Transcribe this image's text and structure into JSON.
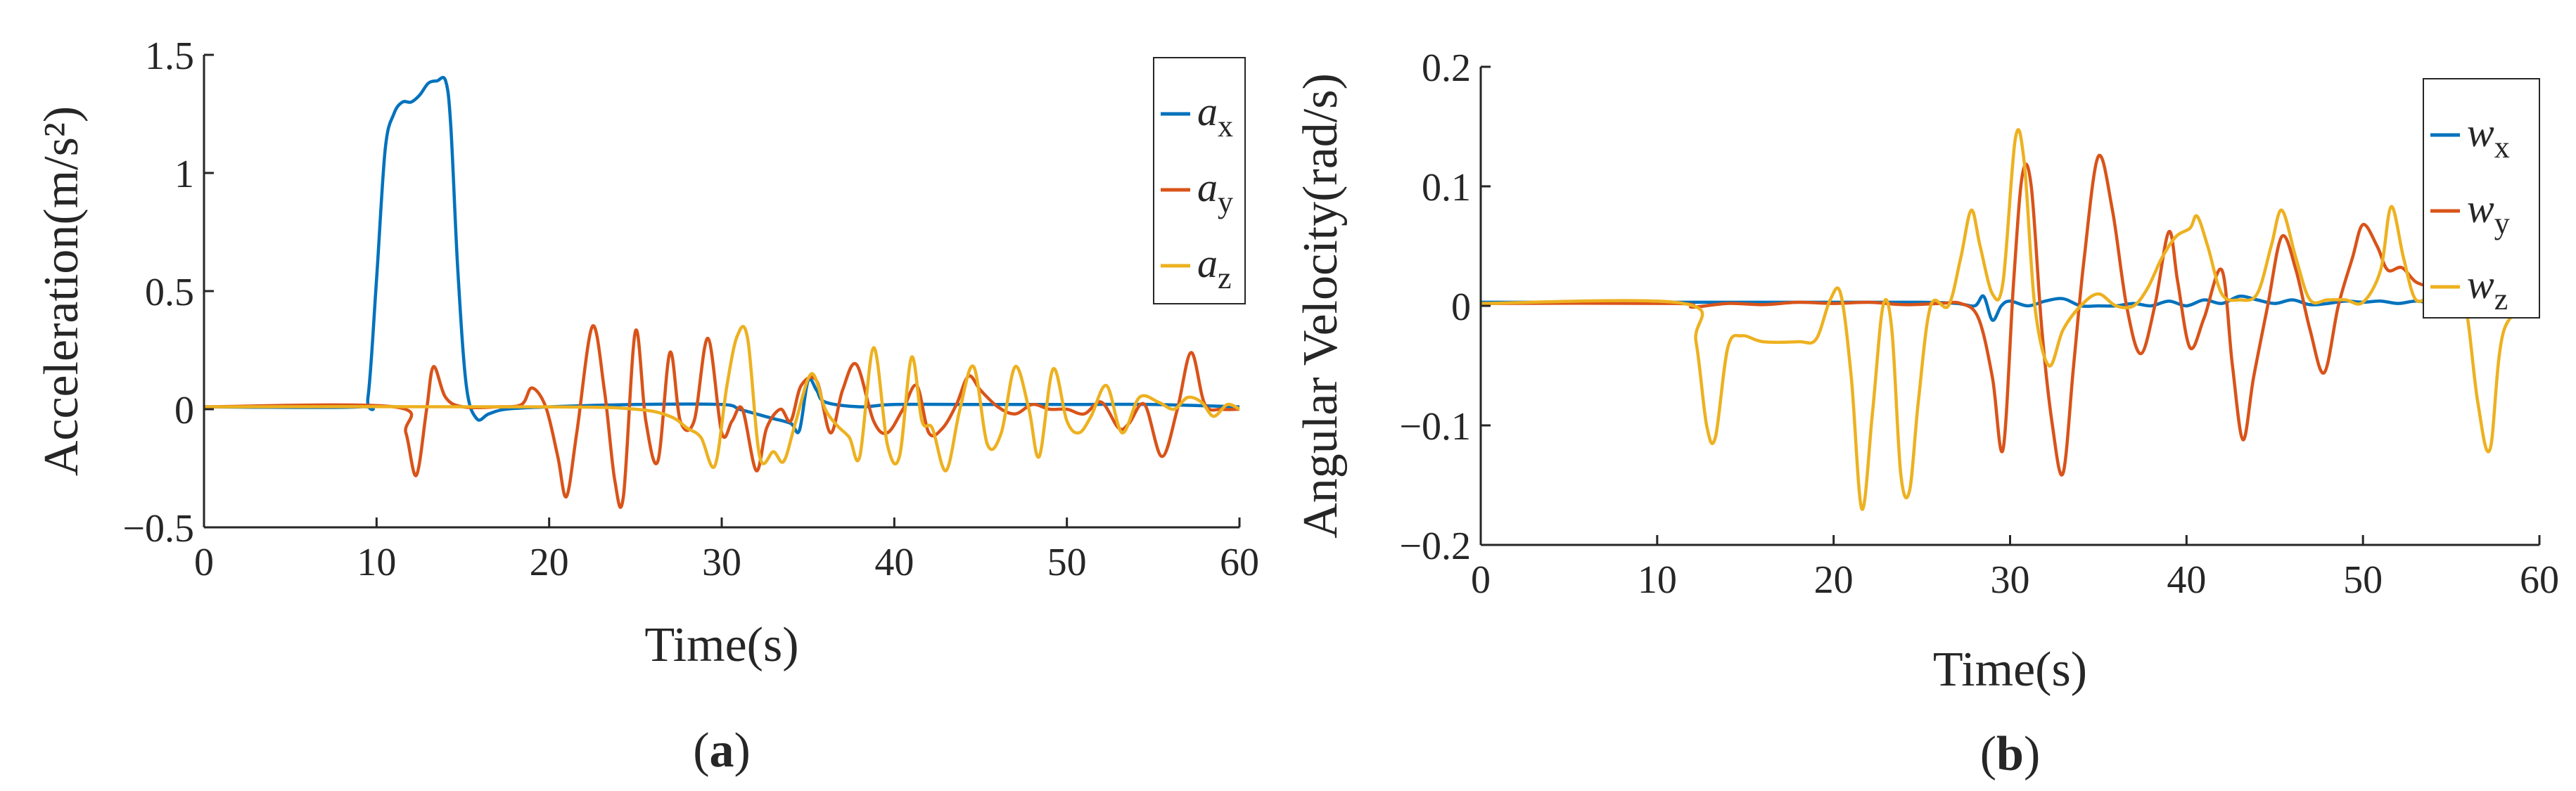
{
  "chart_data": [
    {
      "type": "line",
      "panel_label": "(a)",
      "xlabel": "Time(s)",
      "ylabel": "Acceleration(m/s²)",
      "xlim": [
        0,
        60
      ],
      "ylim": [
        -0.5,
        1.5
      ],
      "xticks": [
        0,
        10,
        20,
        30,
        40,
        50,
        60
      ],
      "yticks": [
        -0.5,
        0,
        0.5,
        1,
        1.5
      ],
      "ytick_labels": [
        "−0.5",
        "0",
        "0.5",
        "1",
        "1.5"
      ],
      "grid": false,
      "legend_position": "top-right",
      "series": [
        {
          "name": "a",
          "subscript": "x",
          "color": "#0072BD",
          "x": [
            0,
            9,
            9.5,
            10,
            10.5,
            11,
            11.5,
            12,
            12.5,
            13,
            13.5,
            14,
            14.3,
            14.7,
            15.2,
            15.8,
            16.5,
            17.5,
            20,
            25,
            30,
            31,
            32,
            33,
            34,
            34.5,
            35,
            35.5,
            36,
            38,
            40,
            45,
            50,
            55,
            60
          ],
          "y": [
            0.01,
            0.01,
            0.05,
            0.55,
            1.1,
            1.25,
            1.3,
            1.3,
            1.33,
            1.38,
            1.39,
            1.39,
            1.2,
            0.6,
            0.1,
            -0.04,
            -0.02,
            0.0,
            0.01,
            0.02,
            0.02,
            0.0,
            -0.02,
            -0.04,
            -0.06,
            -0.09,
            0.12,
            0.08,
            0.03,
            0.01,
            0.02,
            0.02,
            0.02,
            0.02,
            0.01
          ]
        },
        {
          "name": "a",
          "subscript": "y",
          "color": "#D95319",
          "x": [
            0,
            11,
            11.7,
            12.3,
            12.9,
            13.3,
            14,
            15,
            17,
            18.4,
            19,
            19.8,
            20.5,
            21,
            21.6,
            22.5,
            23.2,
            23.8,
            24.3,
            25,
            25.6,
            26.3,
            27,
            27.6,
            28.4,
            29.2,
            30,
            30.6,
            31.2,
            32,
            32.6,
            33.4,
            34,
            34.6,
            35.5,
            36.3,
            37,
            37.8,
            38.8,
            39.6,
            40.5,
            41.3,
            42,
            42.8,
            43.6,
            44.3,
            45,
            46,
            47,
            48,
            49,
            50,
            51,
            52,
            53,
            53.6,
            54.5,
            55.5,
            56.4,
            57.2,
            58,
            59,
            60
          ],
          "y": [
            0.01,
            0.01,
            -0.1,
            -0.28,
            0.0,
            0.18,
            0.05,
            0.01,
            0.01,
            0.02,
            0.09,
            0.01,
            -0.2,
            -0.37,
            -0.1,
            0.35,
            0.08,
            -0.3,
            -0.37,
            0.33,
            -0.05,
            -0.22,
            0.24,
            -0.05,
            -0.05,
            0.3,
            -0.1,
            -0.05,
            0.0,
            -0.26,
            -0.08,
            0.0,
            -0.05,
            0.1,
            0.12,
            -0.1,
            0.08,
            0.19,
            -0.05,
            -0.1,
            0.0,
            0.1,
            -0.1,
            -0.08,
            0.02,
            0.14,
            0.08,
            0.01,
            -0.02,
            0.02,
            0.0,
            0.0,
            -0.02,
            0.03,
            -0.08,
            -0.06,
            0.02,
            -0.2,
            0.0,
            0.24,
            0.02,
            0.0,
            0.0
          ]
        },
        {
          "name": "a",
          "subscript": "z",
          "color": "#EDB120",
          "x": [
            0,
            20,
            25,
            27,
            28,
            28.8,
            29.6,
            30.3,
            30.9,
            31.5,
            32.2,
            33,
            33.6,
            34.3,
            35.2,
            36,
            36.7,
            37.4,
            38,
            38.8,
            39.6,
            40.3,
            41,
            41.6,
            42.2,
            43,
            43.8,
            44.6,
            45.4,
            46.2,
            47,
            47.8,
            48.4,
            49.2,
            50,
            50.7,
            51.4,
            52.3,
            53.2,
            54.2,
            55.3,
            56.2,
            57,
            57.8,
            58.5,
            59.3,
            60
          ],
          "y": [
            0.01,
            0.01,
            0.0,
            -0.03,
            -0.08,
            -0.12,
            -0.24,
            0.1,
            0.31,
            0.3,
            -0.2,
            -0.18,
            -0.22,
            -0.05,
            0.15,
            0.0,
            -0.07,
            -0.12,
            -0.2,
            0.26,
            -0.15,
            -0.2,
            0.22,
            -0.05,
            -0.08,
            -0.26,
            0.0,
            0.18,
            -0.15,
            -0.1,
            0.18,
            0.0,
            -0.2,
            0.17,
            -0.05,
            -0.1,
            -0.03,
            0.1,
            -0.1,
            0.05,
            0.03,
            0.0,
            0.05,
            0.03,
            -0.03,
            0.02,
            0.0
          ]
        }
      ]
    },
    {
      "type": "line",
      "panel_label": "(b)",
      "xlabel": "Time(s)",
      "ylabel": "Angular Velocity(rad/s)",
      "xlim": [
        0,
        60
      ],
      "ylim": [
        -0.2,
        0.2
      ],
      "xticks": [
        0,
        10,
        20,
        30,
        40,
        50,
        60
      ],
      "yticks": [
        -0.2,
        -0.1,
        0,
        0.1,
        0.2
      ],
      "ytick_labels": [
        "−0.2",
        "−0.1",
        "0",
        "0.1",
        "0.2"
      ],
      "grid": false,
      "legend_position": "top-right",
      "series": [
        {
          "name": "w",
          "subscript": "x",
          "color": "#0072BD",
          "x": [
            0,
            10,
            20,
            25,
            27,
            28,
            28.5,
            29,
            29.5,
            30,
            31,
            32,
            33,
            34,
            35,
            36,
            37,
            38,
            39,
            40,
            41,
            42,
            43,
            44,
            45,
            46,
            47,
            48,
            49,
            50,
            51,
            52,
            53,
            54,
            55,
            56,
            57,
            58,
            60
          ],
          "y": [
            0.003,
            0.003,
            0.003,
            0.003,
            0.002,
            0.0,
            0.008,
            -0.012,
            0.0,
            0.004,
            0.0,
            0.004,
            0.006,
            0.0,
            0.0,
            0.0,
            0.002,
            0.0,
            0.004,
            0.0,
            0.005,
            0.002,
            0.008,
            0.005,
            0.002,
            0.005,
            0.001,
            0.002,
            0.004,
            0.003,
            0.004,
            0.002,
            0.004,
            0.002,
            0.002,
            0.002,
            0.0,
            0.002,
            0.002
          ]
        },
        {
          "name": "w",
          "subscript": "y",
          "color": "#D95319",
          "x": [
            0,
            11,
            12,
            14,
            16,
            18,
            20,
            22,
            24,
            26,
            27.2,
            28.2,
            29,
            29.6,
            30.2,
            30.7,
            31.2,
            31.8,
            32.4,
            33,
            33.6,
            34.2,
            35,
            35.8,
            36.6,
            37.4,
            38.2,
            39,
            39.5,
            40.2,
            41,
            42,
            42.6,
            43.2,
            43.8,
            44.6,
            45.4,
            46.2,
            47,
            47.8,
            48.6,
            49.4,
            50,
            50.8,
            51.4,
            52.2,
            53,
            54,
            55,
            55.6,
            56.2,
            57,
            58,
            60
          ],
          "y": [
            0.002,
            0.002,
            -0.001,
            0.002,
            0.001,
            0.003,
            0.002,
            0.003,
            0.001,
            0.002,
            0.002,
            -0.01,
            -0.06,
            -0.12,
            0.02,
            0.11,
            0.1,
            -0.02,
            -0.1,
            -0.14,
            -0.05,
            0.04,
            0.125,
            0.08,
            0.0,
            -0.04,
            0.0,
            0.062,
            0.02,
            -0.035,
            -0.01,
            0.03,
            -0.05,
            -0.112,
            -0.06,
            0.0,
            0.058,
            0.03,
            -0.02,
            -0.056,
            0.0,
            0.04,
            0.068,
            0.05,
            0.03,
            0.032,
            0.02,
            0.015,
            0.01,
            0.005,
            0.003,
            0.003,
            0.002,
            0.002
          ]
        },
        {
          "name": "w",
          "subscript": "z",
          "color": "#EDB120",
          "x": [
            0,
            11.5,
            12.2,
            12.8,
            13.3,
            14,
            14.8,
            16,
            18,
            19,
            19.8,
            20.4,
            21,
            21.6,
            22.2,
            22.8,
            23.3,
            23.8,
            24.3,
            24.8,
            25.5,
            26.5,
            27.2,
            27.8,
            28.3,
            29,
            29.6,
            30.3,
            30.8,
            31.4,
            32.2,
            33,
            34,
            35,
            36,
            37,
            37.8,
            38.6,
            39.4,
            40.2,
            40.6,
            41.2,
            42,
            43,
            44,
            44.8,
            45.4,
            46.2,
            47,
            48,
            49,
            50,
            51,
            51.6,
            52.3,
            53,
            54,
            55,
            55.8,
            56.5,
            57.2,
            58,
            60
          ],
          "y": [
            0.002,
            0.002,
            -0.03,
            -0.1,
            -0.11,
            -0.035,
            -0.025,
            -0.03,
            -0.03,
            -0.028,
            0.005,
            0.01,
            -0.06,
            -0.17,
            -0.09,
            0.0,
            -0.02,
            -0.14,
            -0.155,
            -0.08,
            0.0,
            0.0,
            0.04,
            0.08,
            0.05,
            0.01,
            0.02,
            0.14,
            0.12,
            0.0,
            -0.05,
            -0.02,
            0.0,
            0.01,
            0.0,
            0.0,
            0.015,
            0.04,
            0.058,
            0.065,
            0.075,
            0.05,
            0.01,
            0.005,
            0.01,
            0.05,
            0.08,
            0.04,
            0.005,
            0.005,
            0.005,
            0.003,
            0.03,
            0.083,
            0.04,
            0.005,
            0.01,
            0.005,
            0.0,
            -0.08,
            -0.12,
            -0.02,
            0.003
          ]
        }
      ]
    }
  ]
}
